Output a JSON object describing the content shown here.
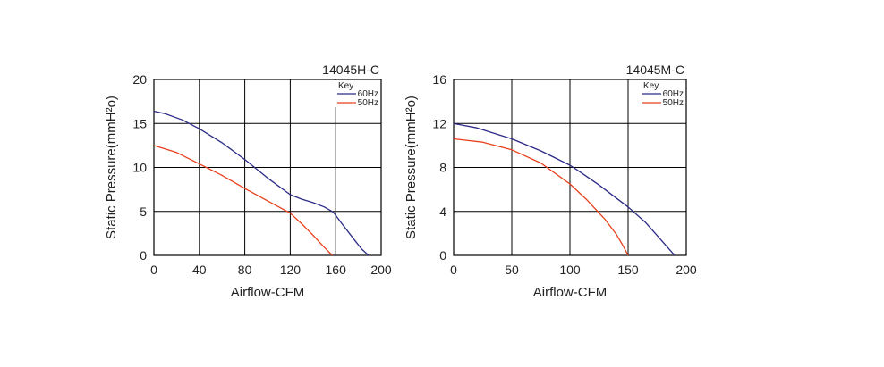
{
  "chart_data": [
    {
      "type": "line",
      "title": "14045H-C",
      "xlabel": "Airflow-CFM",
      "ylabel": "Static Pressure(mmH²o)",
      "xlim": [
        0,
        200
      ],
      "ylim": [
        0,
        20
      ],
      "xticks": [
        0,
        40,
        80,
        120,
        160,
        200
      ],
      "yticks": [
        0,
        5,
        10,
        15,
        20
      ],
      "grid": true,
      "legend": {
        "title": "Key",
        "placement": "top-right"
      },
      "series": [
        {
          "name": "60Hz",
          "color": "#2b2a86",
          "x": [
            0,
            10,
            25,
            40,
            60,
            80,
            100,
            120,
            130,
            140,
            150,
            158,
            165,
            175,
            183,
            189
          ],
          "y": [
            16.4,
            16.1,
            15.4,
            14.4,
            12.8,
            10.9,
            8.8,
            6.9,
            6.4,
            6.0,
            5.5,
            4.9,
            3.7,
            2.0,
            0.7,
            0
          ]
        },
        {
          "name": "50Hz",
          "color": "#e8401c",
          "x": [
            0,
            20,
            40,
            60,
            80,
            100,
            120,
            130,
            140,
            150,
            157
          ],
          "y": [
            12.5,
            11.7,
            10.4,
            9.1,
            7.6,
            6.2,
            4.8,
            3.6,
            2.3,
            0.9,
            0
          ]
        }
      ]
    },
    {
      "type": "line",
      "title": "14045M-C",
      "xlabel": "Airflow-CFM",
      "ylabel": "Static Pressure(mmH²o)",
      "xlim": [
        0,
        200
      ],
      "ylim": [
        0,
        16
      ],
      "xticks": [
        0,
        50,
        100,
        150,
        200
      ],
      "yticks": [
        0,
        4,
        8,
        12,
        16
      ],
      "grid": true,
      "legend": {
        "title": "Key",
        "placement": "top-right"
      },
      "series": [
        {
          "name": "60Hz",
          "color": "#2b2a86",
          "x": [
            0,
            20,
            50,
            75,
            100,
            110,
            125,
            150,
            165,
            175,
            185,
            190
          ],
          "y": [
            12.0,
            11.6,
            10.6,
            9.5,
            8.2,
            7.5,
            6.4,
            4.4,
            3.0,
            1.8,
            0.6,
            0
          ]
        },
        {
          "name": "50Hz",
          "color": "#e8401c",
          "x": [
            0,
            25,
            50,
            75,
            100,
            115,
            130,
            140,
            146,
            150
          ],
          "y": [
            10.6,
            10.3,
            9.6,
            8.4,
            6.5,
            5.0,
            3.3,
            1.9,
            0.8,
            0
          ]
        }
      ]
    }
  ]
}
